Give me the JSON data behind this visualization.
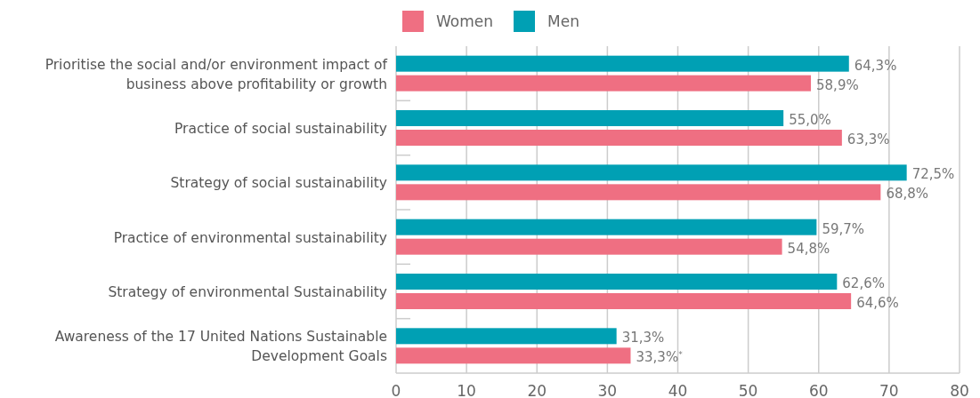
{
  "chart_data": {
    "type": "bar",
    "orientation": "horizontal",
    "categories": [
      "Prioritise the social and/or environment impact of business above profitability or growth",
      "Practice of social sustainability",
      "Strategy of social sustainability",
      "Practice of environmental sustainability",
      "Strategy of environmental Sustainability",
      "Awareness of the 17 United Nations Sustainable Development Goals"
    ],
    "series": [
      {
        "name": "Men",
        "color": "#00a0b4",
        "values": [
          64.3,
          55.0,
          72.5,
          59.7,
          62.6,
          31.3
        ],
        "value_labels": [
          "64,3%",
          "55,0%",
          "72,5%",
          "59,7%",
          "62,6%",
          "31,3%"
        ]
      },
      {
        "name": "Women",
        "color": "#ef6f82",
        "values": [
          58.9,
          63.3,
          68.8,
          54.8,
          64.6,
          33.3
        ],
        "value_labels": [
          "58,9%",
          "63,3%",
          "68,8%",
          "54,8%",
          "64,6%",
          "33,3%$^{*}$"
        ]
      }
    ],
    "xlim": [
      0,
      80
    ],
    "xticks": [
      0,
      10,
      20,
      30,
      40,
      50,
      60,
      70,
      80
    ],
    "grid": "x",
    "legend": "top"
  }
}
